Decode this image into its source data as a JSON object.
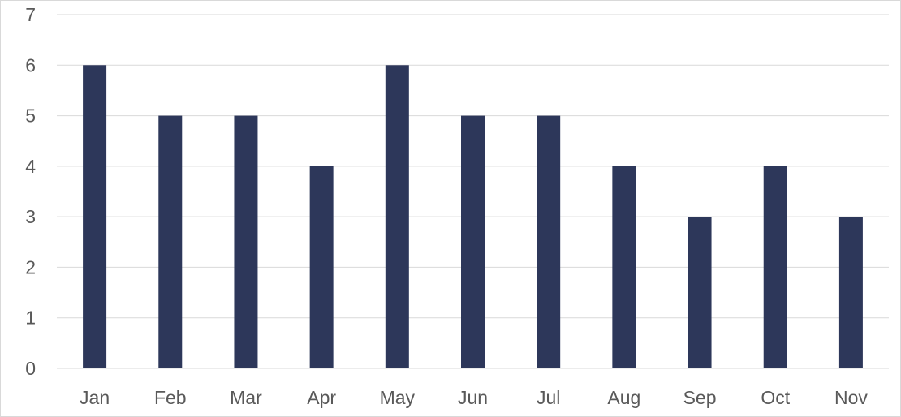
{
  "chart_data": {
    "type": "bar",
    "title": "",
    "xlabel": "",
    "ylabel": "",
    "categories": [
      "Jan",
      "Feb",
      "Mar",
      "Apr",
      "May",
      "Jun",
      "Jul",
      "Aug",
      "Sep",
      "Oct",
      "Nov"
    ],
    "series": [
      {
        "values": [
          6,
          5,
          5,
          4,
          6,
          5,
          5,
          4,
          3,
          4,
          3
        ],
        "color": "#2d375a"
      }
    ],
    "ylim": [
      0,
      7
    ],
    "yticks": [
      "0",
      "1",
      "2",
      "3",
      "4",
      "5",
      "6",
      "7"
    ],
    "grid": true,
    "legend": "none"
  }
}
